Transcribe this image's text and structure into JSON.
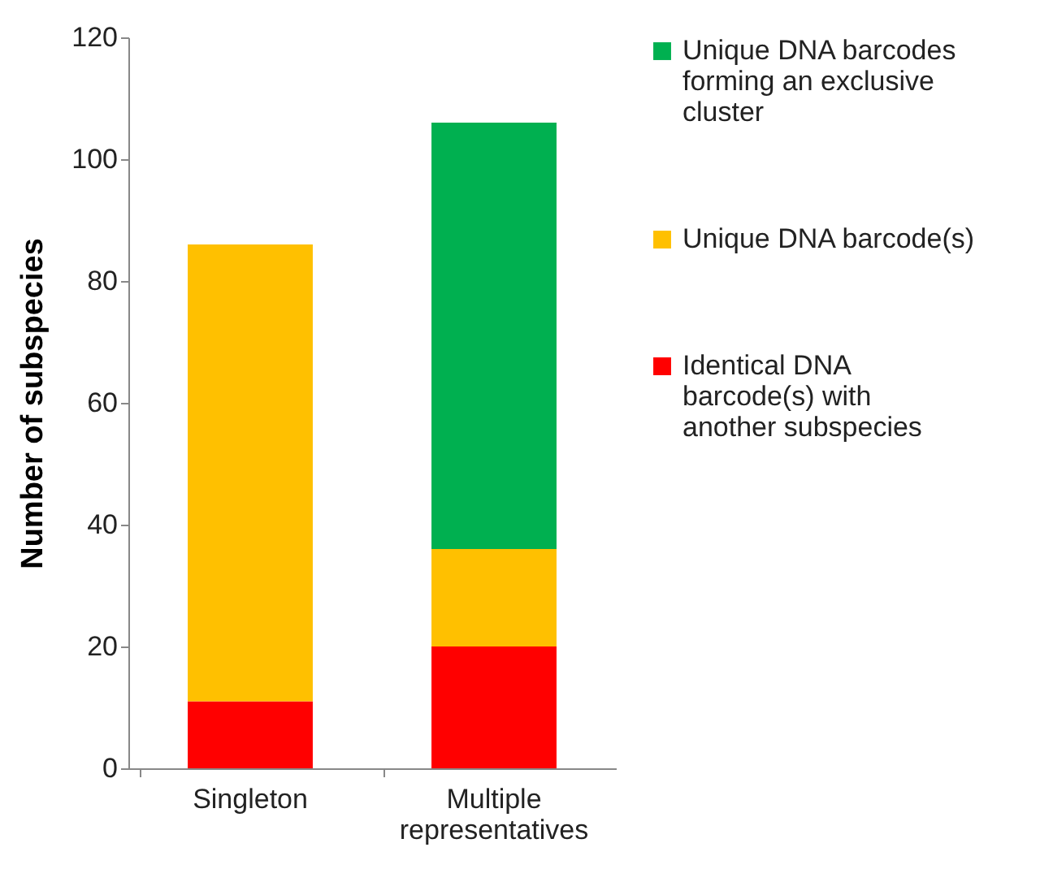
{
  "chart_data": {
    "type": "bar",
    "stacked": true,
    "ylabel": "Number of subspecies",
    "categories": [
      "Singleton",
      "Multiple representatives"
    ],
    "ylim": [
      0,
      120
    ],
    "yticks": [
      0,
      20,
      40,
      60,
      80,
      100,
      120
    ],
    "grid": false,
    "legend": "right",
    "series": [
      {
        "name": "Identical DNA barcode(s) with another subspecies",
        "color": "#ff0000",
        "values": [
          11,
          20
        ]
      },
      {
        "name": "Unique DNA barcode(s)",
        "color": "#ffc000",
        "values": [
          75,
          16
        ]
      },
      {
        "name": "Unique DNA barcodes forming an exclusive cluster",
        "color": "#00b050",
        "values": [
          null,
          70
        ]
      }
    ]
  }
}
